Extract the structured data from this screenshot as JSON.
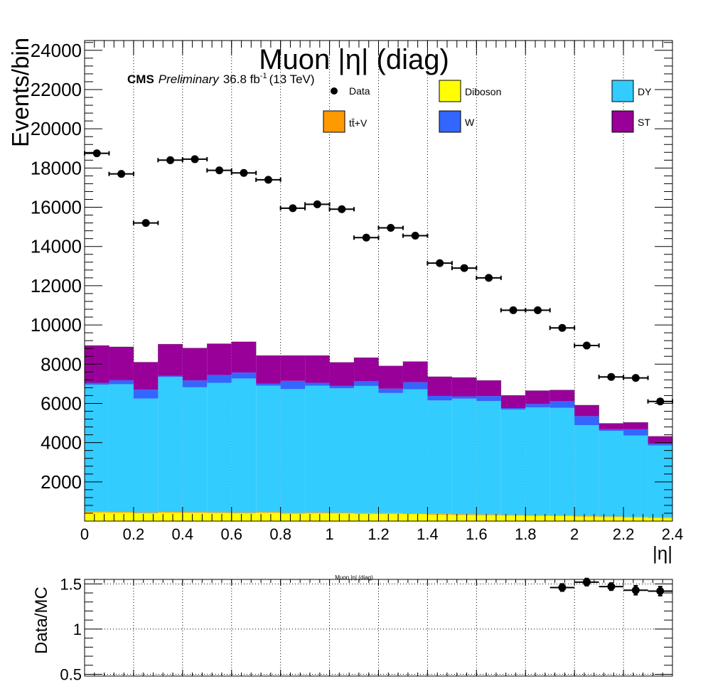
{
  "chart_data": [
    {
      "type": "bar",
      "stacked": true,
      "title": "Muon |η| (diag)",
      "experiment": "CMS",
      "status": "Preliminary",
      "lumi": "36.8 fb",
      "lumi_exp": "-1",
      "energy": "(13 TeV)",
      "xlabel": "|η|",
      "ylabel": "Events/bin",
      "xlim": [
        0,
        2.4
      ],
      "ylim": [
        0,
        24500
      ],
      "xticks": [
        0,
        0.2,
        0.4,
        0.6,
        0.8,
        1,
        1.2,
        1.4,
        1.6,
        1.8,
        2,
        2.2,
        2.4
      ],
      "xtick_labels": [
        "0",
        "0.2",
        "0.4",
        "0.6",
        "0.8",
        "1",
        "1.2",
        "1.4",
        "1.6",
        "1.8",
        "2",
        "2.2",
        "2.4"
      ],
      "yticks": [
        2000,
        4000,
        6000,
        8000,
        10000,
        12000,
        14000,
        16000,
        18000,
        20000,
        22000,
        24000
      ],
      "ytick_labels": [
        "2000",
        "4000",
        "6000",
        "8000",
        "10000",
        "12000",
        "14000",
        "16000",
        "18000",
        "20000",
        "22000",
        "24000"
      ],
      "grid_x": true,
      "bin_edges": [
        0,
        0.1,
        0.2,
        0.3,
        0.4,
        0.5,
        0.6,
        0.7,
        0.8,
        0.9,
        1.0,
        1.1,
        1.2,
        1.3,
        1.4,
        1.5,
        1.6,
        1.7,
        1.8,
        1.9,
        2.0,
        2.1,
        2.2,
        2.3,
        2.4
      ],
      "stack_order": [
        "Diboson",
        "ttV",
        "DY",
        "W",
        "ST"
      ],
      "series": [
        {
          "name": "Diboson",
          "key": "Diboson",
          "color": "#ffff00",
          "values": [
            440,
            430,
            400,
            430,
            420,
            410,
            400,
            420,
            380,
            400,
            390,
            370,
            370,
            360,
            330,
            310,
            300,
            280,
            270,
            260,
            230,
            210,
            190,
            160
          ]
        },
        {
          "name": "tt̄+V",
          "key": "ttV",
          "color": "#ff9900",
          "values": [
            40,
            40,
            40,
            40,
            40,
            40,
            40,
            40,
            40,
            40,
            40,
            40,
            40,
            40,
            40,
            40,
            40,
            40,
            40,
            40,
            30,
            30,
            30,
            30
          ]
        },
        {
          "name": "DY",
          "key": "DY",
          "color": "#33ccff",
          "values": [
            6470,
            6510,
            5810,
            6880,
            6360,
            6600,
            6830,
            6440,
            6310,
            6460,
            6340,
            6480,
            6120,
            6320,
            5780,
            5890,
            5780,
            5370,
            5490,
            5480,
            4630,
            4360,
            4140,
            3670
          ]
        },
        {
          "name": "W",
          "key": "W",
          "color": "#3366ff",
          "values": [
            100,
            200,
            450,
            50,
            350,
            400,
            300,
            100,
            420,
            150,
            120,
            250,
            220,
            360,
            230,
            120,
            250,
            70,
            170,
            330,
            460,
            80,
            320,
            80
          ]
        },
        {
          "name": "ST",
          "key": "ST",
          "color": "#990099",
          "values": [
            1900,
            1700,
            1400,
            1620,
            1650,
            1590,
            1570,
            1440,
            1290,
            1390,
            1200,
            1190,
            1160,
            1050,
            980,
            960,
            800,
            650,
            680,
            570,
            560,
            300,
            350,
            380
          ]
        }
      ],
      "data": {
        "name": "Data",
        "values": [
          18750,
          17700,
          15200,
          18400,
          18450,
          17880,
          17750,
          17400,
          15950,
          16150,
          15900,
          14450,
          14950,
          14550,
          13150,
          12900,
          12400,
          10750,
          10750,
          9850,
          8950,
          7350,
          7300,
          6100
        ]
      },
      "legend": {
        "placement": "top",
        "columns": [
          [
            "Data",
            "ttV"
          ],
          [
            "Diboson",
            "W"
          ],
          [
            "DY",
            "ST"
          ]
        ]
      }
    },
    {
      "type": "scatter",
      "title": "Muon |η| (diag)",
      "ylabel": "Data/MC",
      "xlim": [
        0,
        2.4
      ],
      "ylim": [
        0.48,
        1.55
      ],
      "yticks": [
        0.5,
        1,
        1.5
      ],
      "ytick_labels": [
        "0.5",
        "1",
        "1.5"
      ],
      "grid_x": true,
      "grid_y": true,
      "points": [
        {
          "x": 1.95,
          "y": 1.46,
          "err": 0.04
        },
        {
          "x": 2.05,
          "y": 1.52,
          "err": 0.04
        },
        {
          "x": 2.15,
          "y": 1.47,
          "err": 0.04
        },
        {
          "x": 2.25,
          "y": 1.43,
          "err": 0.05
        },
        {
          "x": 2.35,
          "y": 1.42,
          "err": 0.05
        }
      ]
    }
  ]
}
